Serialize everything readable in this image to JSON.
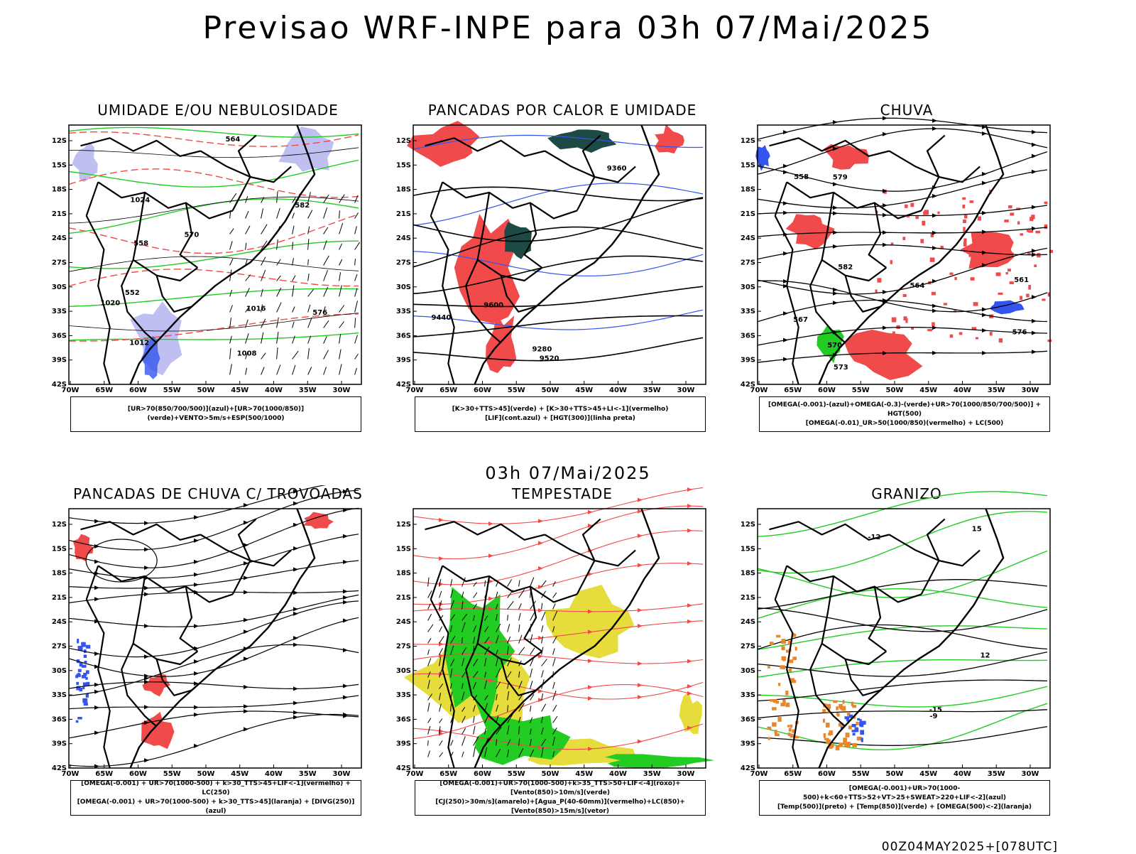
{
  "header": {
    "title": "Previsao WRF-INPE  para 03h 07/Mai/2025",
    "mid_title": "03h 07/Mai/2025",
    "run_info": "00Z04MAY2025+[078UTC]"
  },
  "axes": {
    "lat_labels": [
      "12S",
      "15S",
      "18S",
      "21S",
      "24S",
      "27S",
      "30S",
      "33S",
      "36S",
      "39S",
      "42S"
    ],
    "lon_labels": [
      "70W",
      "65W",
      "60W",
      "55W",
      "50W",
      "45W",
      "40W",
      "35W",
      "30W"
    ]
  },
  "colors": {
    "red": "#f04a4a",
    "green": "#22cc22",
    "blue": "#3355ee",
    "lavender": "#b8b8f0",
    "yellow": "#e6dc3c",
    "darkteal": "#1e4a46",
    "orange": "#e8862a",
    "black": "#000000"
  },
  "panels": [
    {
      "title": "UMIDADE E/OU NEBULOSIDADE",
      "legend": [
        "[UR>70(850/700/500)](azul)+[UR>70(1000/850)](verde)+VENTO>5m/s+ESP(500/1000)"
      ],
      "contour_labels": [
        "1012",
        "1016",
        "1020",
        "1024",
        "1008",
        "576",
        "570",
        "564",
        "558",
        "552",
        "582"
      ]
    },
    {
      "title": "PANCADAS POR CALOR E UMIDADE",
      "legend": [
        "[K>30+TTS>45](verde) + [K>30+TTS>45+LI<-1](vermelho)",
        "[LIF](cont.azul) + [HGT(300)](linha preta)"
      ],
      "contour_labels": [
        "9600",
        "9520",
        "9440",
        "9360",
        "9280"
      ]
    },
    {
      "title": "CHUVA",
      "legend": [
        "[OMEGA(-0.001)-(azul)+OMEGA(-0.3)-(verde)+UR>70(1000/850/700/500)] + HGT(500)",
        "[OMEGA(-0.01)_UR>50(1000/850)(vermelho) + LC(500)"
      ],
      "contour_labels": [
        "582",
        "579",
        "576",
        "573",
        "570",
        "567",
        "564",
        "561",
        "558"
      ]
    },
    {
      "title": "PANCADAS DE CHUVA C/ TROVOADAS",
      "legend": [
        "[OMEGA(-0.001) + UR>70(1000-500) + k>30_TTS>45+LIF<-1](vermelho) + LC(250)",
        "[OMEGA(-0.001) + UR>70(1000-500) + k>30_TTS>45](laranja) + [DIVG(250)](azul)"
      ],
      "contour_labels": []
    },
    {
      "title": "TEMPESTADE",
      "legend": [
        "[OMEGA(-0.001)+UR>70(1000-500)+k>35_TTS>50+LIF<-4](roxo)+[Vento(850)>10m/s](verde)",
        "[CJ(250)>30m/s](amarelo)+[Agua_P(40-60mm)](vermelho)+LC(850)+[Vento(850)>15m/s](vetor)"
      ],
      "contour_labels": []
    },
    {
      "title": "GRANIZO",
      "legend": [
        "[OMEGA(-0.001)+UR>70(1000-500)+k<60+TTS>52+VT>25+SWEAT>220+LIF<-2](azul)",
        "[Temp(500)](preto) + [Temp(850)](verde) + [OMEGA(500)<-2](laranja)"
      ],
      "contour_labels": [
        "-12",
        "-15",
        "15",
        "12",
        "-9"
      ]
    }
  ]
}
